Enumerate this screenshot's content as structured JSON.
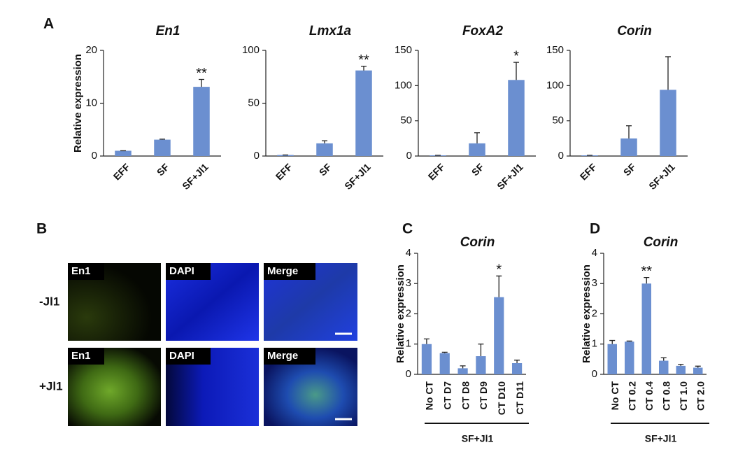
{
  "chart_data": [
    {
      "type": "bar",
      "panel": "A",
      "title": "En1",
      "y_label": "Relative expression",
      "color": "#6b8fd0",
      "categories": [
        "EFF",
        "SF",
        "SF+Jl1"
      ],
      "values": [
        1,
        3.1,
        13.1
      ],
      "errors": [
        0,
        0.1,
        1.4
      ],
      "significance": [
        null,
        null,
        "**"
      ],
      "ylim": [
        0,
        20
      ],
      "yticks": [
        0,
        10,
        20
      ]
    },
    {
      "type": "bar",
      "title": "Lmx1a",
      "color": "#6b8fd0",
      "categories": [
        "EFF",
        "SF",
        "SF+Jl1"
      ],
      "values": [
        1,
        12,
        81
      ],
      "errors": [
        0,
        2.5,
        4
      ],
      "significance": [
        null,
        null,
        "**"
      ],
      "ylim": [
        0,
        100
      ],
      "yticks": [
        0,
        50,
        100
      ]
    },
    {
      "type": "bar",
      "title": "FoxA2",
      "color": "#6b8fd0",
      "categories": [
        "EFF",
        "SF",
        "SF+Jl1"
      ],
      "values": [
        1,
        18,
        108
      ],
      "errors": [
        0,
        15,
        25
      ],
      "significance": [
        null,
        null,
        "*"
      ],
      "ylim": [
        0,
        150
      ],
      "yticks": [
        0,
        50,
        100,
        150
      ]
    },
    {
      "type": "bar",
      "title": "Corin",
      "color": "#6b8fd0",
      "categories": [
        "EFF",
        "SF",
        "SF+Jl1"
      ],
      "values": [
        1,
        25,
        94
      ],
      "errors": [
        0,
        18,
        47
      ],
      "ylim": [
        0,
        150
      ],
      "yticks": [
        0,
        50,
        100,
        150
      ]
    },
    {
      "type": "bar",
      "panel": "C",
      "title": "Corin",
      "y_label": "Relative expression",
      "color": "#6b8fd0",
      "categories": [
        "No CT",
        "CT D7",
        "CT D8",
        "CT D9",
        "CT D10",
        "CT D11"
      ],
      "values": [
        1.0,
        0.7,
        0.2,
        0.6,
        2.55,
        0.37
      ],
      "errors": [
        0.17,
        0.03,
        0.08,
        0.4,
        0.7,
        0.1
      ],
      "significance": [
        null,
        null,
        null,
        null,
        "*",
        null
      ],
      "group_label": "SF+Jl1",
      "ylim": [
        0,
        4
      ],
      "yticks": [
        0,
        1,
        2,
        3,
        4
      ]
    },
    {
      "type": "bar",
      "panel": "D",
      "title": "Corin",
      "y_label": "Relative expression",
      "color": "#6b8fd0",
      "categories": [
        "No CT",
        "CT 0.2",
        "CT 0.4",
        "CT 0.8",
        "CT 1.0",
        "CT 2.0"
      ],
      "values": [
        1.0,
        1.08,
        3.0,
        0.45,
        0.28,
        0.22
      ],
      "errors": [
        0.12,
        0.02,
        0.2,
        0.1,
        0.05,
        0.05
      ],
      "significance": [
        null,
        null,
        "**",
        null,
        null,
        null
      ],
      "group_label": "SF+Jl1",
      "ylim": [
        0,
        4
      ],
      "yticks": [
        0,
        1,
        2,
        3,
        4
      ]
    }
  ],
  "figure_b": {
    "panel": "B",
    "columns": [
      "En1",
      "DAPI",
      "Merge"
    ],
    "rows": [
      "-Jl1",
      "+Jl1"
    ]
  }
}
